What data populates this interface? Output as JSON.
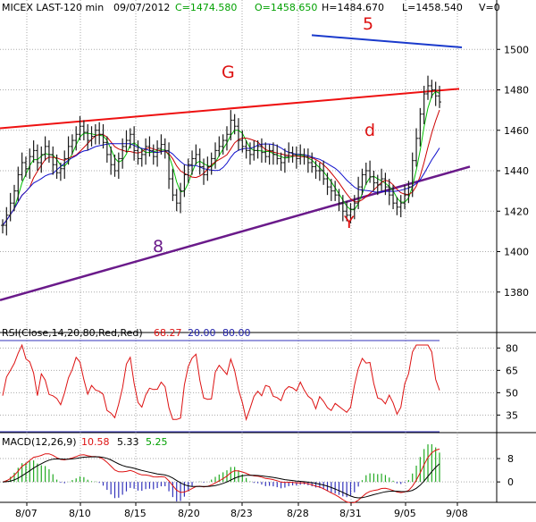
{
  "chart_data": {
    "type": "financial-ohlc",
    "header": {
      "symbol": "MICEX LAST-120 min",
      "date": "09/07/2012",
      "close": "C=1474.580",
      "open": "O=1458.650",
      "high": "H=1484.670",
      "low": "L=1458.540",
      "volume": "V=0"
    },
    "price_axis": {
      "ylim": [
        1360,
        1520
      ],
      "ticks": [
        "1500",
        "1480",
        "1460",
        "1440",
        "1420",
        "1400",
        "1380"
      ]
    },
    "x_ticks": [
      "8/07",
      "8/10",
      "8/15",
      "8/20",
      "8/23",
      "8/28",
      "8/31",
      "9/05",
      "9/08"
    ],
    "annotations": [
      "5",
      "G",
      "d",
      "Y",
      "8"
    ],
    "price_series": [
      1413,
      1418,
      1424,
      1430,
      1438,
      1444,
      1441,
      1447,
      1450,
      1444,
      1448,
      1452,
      1448,
      1443,
      1439,
      1441,
      1446,
      1452,
      1455,
      1458,
      1462,
      1459,
      1455,
      1457,
      1460,
      1458,
      1454,
      1448,
      1443,
      1440,
      1446,
      1452,
      1455,
      1458,
      1450,
      1446,
      1448,
      1452,
      1450,
      1447,
      1451,
      1453,
      1450,
      1436,
      1428,
      1424,
      1430,
      1438,
      1443,
      1446,
      1448,
      1442,
      1438,
      1442,
      1446,
      1450,
      1452,
      1455,
      1458,
      1465,
      1462,
      1455,
      1452,
      1450,
      1448,
      1450,
      1452,
      1449,
      1447,
      1450,
      1448,
      1446,
      1444,
      1447,
      1449,
      1448,
      1446,
      1448,
      1447,
      1444,
      1442,
      1440,
      1440,
      1436,
      1432,
      1430,
      1428,
      1424,
      1420,
      1418,
      1421,
      1424,
      1432,
      1438,
      1440,
      1437,
      1434,
      1433,
      1436,
      1432,
      1428,
      1424,
      1422,
      1424,
      1428,
      1432,
      1445,
      1456,
      1468,
      1478,
      1482,
      1480,
      1477,
      1474
    ],
    "rsi": {
      "title": "RSI(Close,14,20,80,Red,Red)",
      "value": "68.27",
      "lower": "20.00",
      "upper": "80.00",
      "ylim": [
        25,
        85
      ],
      "ticks": [
        "80",
        "65",
        "50",
        "35"
      ]
    },
    "macd": {
      "title": "MACD(12,26,9)",
      "macd_value": "10.58",
      "signal_value": "5.33",
      "hist_value": "5.25",
      "ylim": [
        -7,
        12
      ],
      "ticks": [
        "8",
        "0"
      ]
    },
    "colors": {
      "bars": "#1a1a1a",
      "ma_fast": "#00c000",
      "ma_mid": "#cc0000",
      "ma_slow": "#1010cc",
      "trend_red": "#ee1111",
      "trend_purple": "#6a1a8a",
      "trend_blue": "#1a3acc",
      "annotation_red": "#dd1111",
      "annotation_purple": "#6a1a8a",
      "rsi": "#dd1111",
      "hist": "#22aa22",
      "grid": "#aaaaaa",
      "level_lines": "#3333bb"
    }
  }
}
